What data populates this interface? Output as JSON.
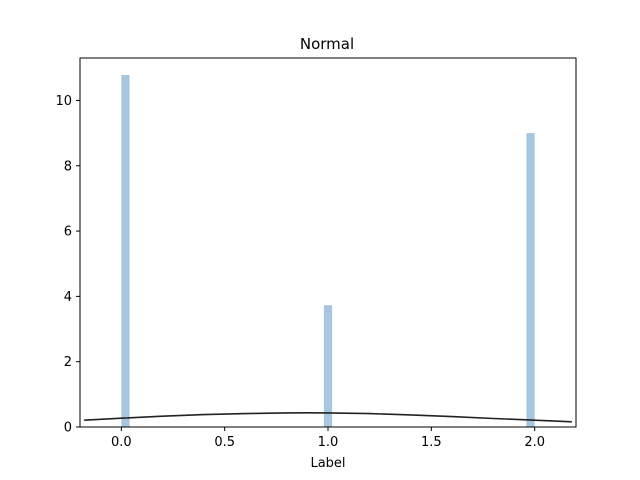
{
  "chart_data": {
    "type": "bar",
    "title": "Normal",
    "xlabel": "Label",
    "ylabel": "",
    "xlim": [
      -0.2,
      2.2
    ],
    "ylim": [
      0,
      11.3
    ],
    "xticks": [
      0.0,
      0.5,
      1.0,
      1.5,
      2.0
    ],
    "xtick_labels": [
      "0.0",
      "0.5",
      "1.0",
      "1.5",
      "2.0"
    ],
    "yticks": [
      0,
      2,
      4,
      6,
      8,
      10
    ],
    "ytick_labels": [
      "0",
      "2",
      "4",
      "6",
      "8",
      "10"
    ],
    "bar_width": 0.04,
    "series": [
      {
        "type": "histogram",
        "x": [
          0.02,
          1.0,
          1.98
        ],
        "values": [
          10.78,
          3.73,
          9.0
        ],
        "color": "#a6c6e1"
      },
      {
        "type": "line",
        "x": [
          -0.18,
          0.0,
          0.2,
          0.4,
          0.6,
          0.8,
          0.9,
          1.0,
          1.2,
          1.4,
          1.6,
          1.8,
          2.0,
          2.18
        ],
        "values": [
          0.21,
          0.27,
          0.33,
          0.38,
          0.41,
          0.43,
          0.435,
          0.43,
          0.41,
          0.37,
          0.32,
          0.26,
          0.21,
          0.16
        ],
        "color": "#222222"
      }
    ],
    "grid": false,
    "legend": "none"
  }
}
